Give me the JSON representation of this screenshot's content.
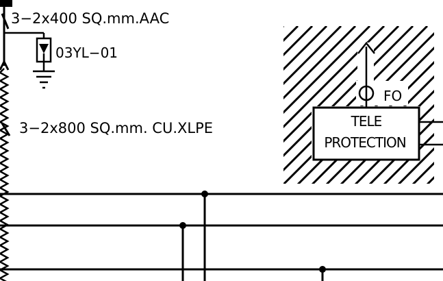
{
  "cable_top": {
    "label": "3−2x400 SQ.mm.AAC"
  },
  "arrester": {
    "label": "03YL−01"
  },
  "cable_bottom": {
    "label": "3−2x800 SQ.mm. CU.XLPE"
  },
  "fibre": {
    "label": "FO"
  },
  "teleprotection": {
    "line1": "TELE",
    "line2": "PROTECTION"
  }
}
